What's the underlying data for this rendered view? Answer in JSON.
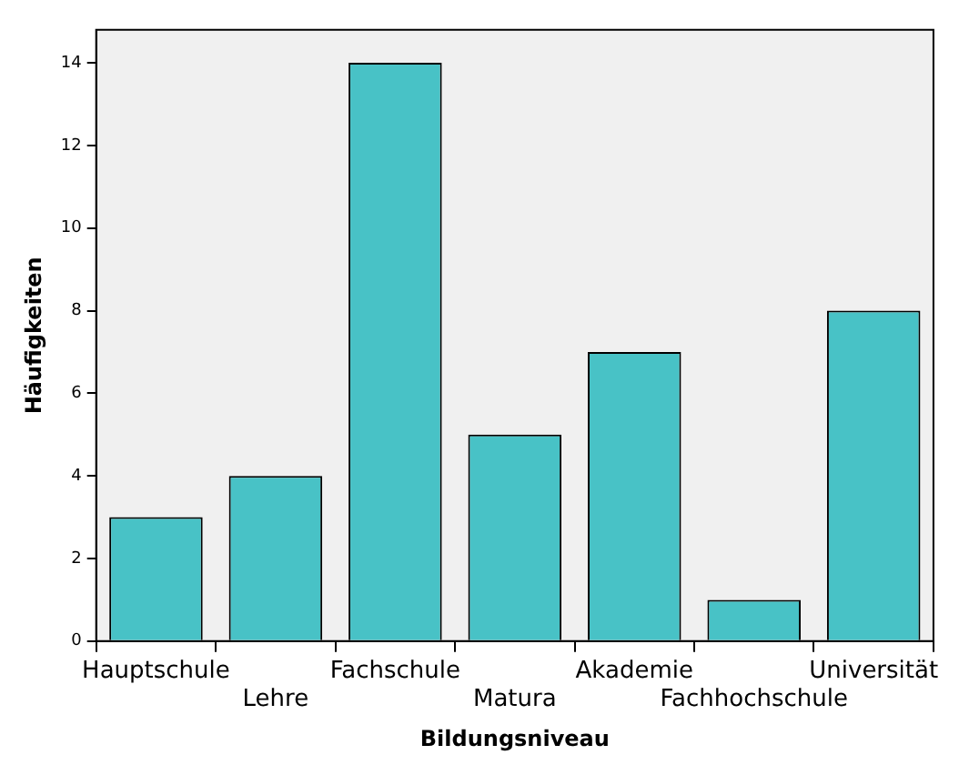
{
  "chart_data": {
    "type": "bar",
    "xlabel": "Bildungsniveau",
    "ylabel": "Häufigkeiten",
    "categories": [
      "Hauptschule",
      "Lehre",
      "Fachschule",
      "Matura",
      "Akademie",
      "Fachhochschule",
      "Universität"
    ],
    "values": [
      3,
      4,
      14,
      5,
      7,
      1,
      8
    ],
    "color": "#48c2c6",
    "ylim": [
      0,
      14.8
    ],
    "yticks": [
      0,
      2,
      4,
      6,
      8,
      10,
      12,
      14
    ],
    "grid": false,
    "legend": false
  }
}
